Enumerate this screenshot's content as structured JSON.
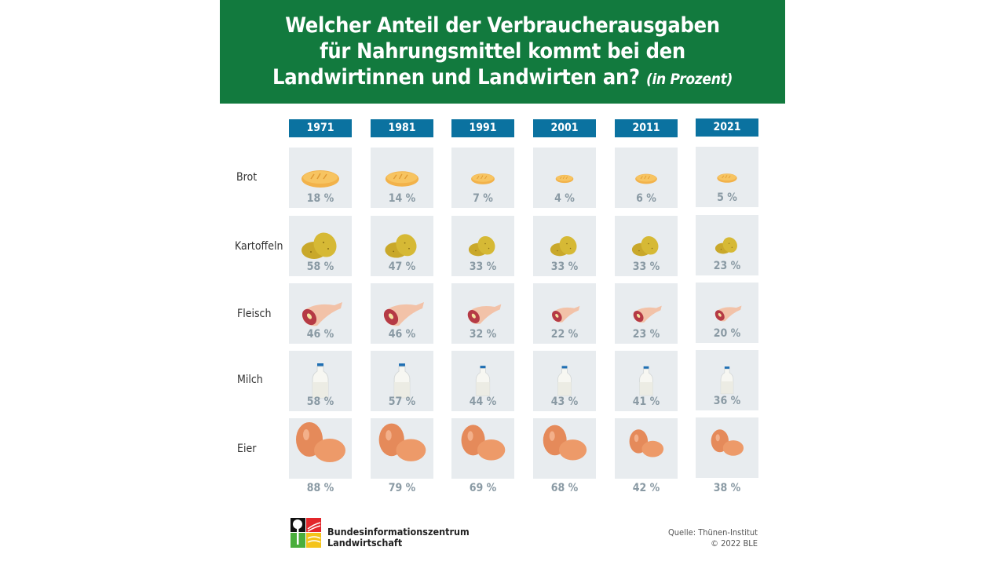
{
  "header": {
    "title_lines": [
      "Welcher Anteil der Verbraucherausgaben",
      "für Nahrungsmittel kommt bei den",
      "Landwirtinnen und Landwirten an?"
    ],
    "unit": "(in Prozent)",
    "background": "#127a3e"
  },
  "chart_data": {
    "type": "table",
    "title": "Welcher Anteil der Verbraucherausgaben für Nahrungsmittel kommt bei den Landwirtinnen und Landwirten an? (in Prozent)",
    "categories": [
      "1971",
      "1981",
      "1991",
      "2001",
      "2011",
      "2021"
    ],
    "series": [
      {
        "name": "Brot",
        "icon": "bread-icon",
        "values": [
          18,
          14,
          7,
          4,
          6,
          5
        ]
      },
      {
        "name": "Kartoffeln",
        "icon": "potato-icon",
        "values": [
          58,
          47,
          33,
          33,
          33,
          23
        ]
      },
      {
        "name": "Fleisch",
        "icon": "meat-icon",
        "values": [
          46,
          46,
          32,
          22,
          23,
          20
        ]
      },
      {
        "name": "Milch",
        "icon": "milk-bottle-icon",
        "values": [
          58,
          57,
          44,
          43,
          41,
          36
        ]
      },
      {
        "name": "Eier",
        "icon": "eggs-icon",
        "values": [
          88,
          79,
          69,
          68,
          42,
          38
        ]
      }
    ],
    "value_suffix": " %",
    "colors": {
      "year_header": "#0b72a0",
      "cell": "#e8ecef",
      "value_text": "#8a9aa4"
    }
  },
  "footer": {
    "org_line1": "Bundesinformationszentrum",
    "org_line2": "Landwirtschaft",
    "source": "Quelle: Thünen-Institut",
    "copyright": "© 2022 BLE"
  }
}
